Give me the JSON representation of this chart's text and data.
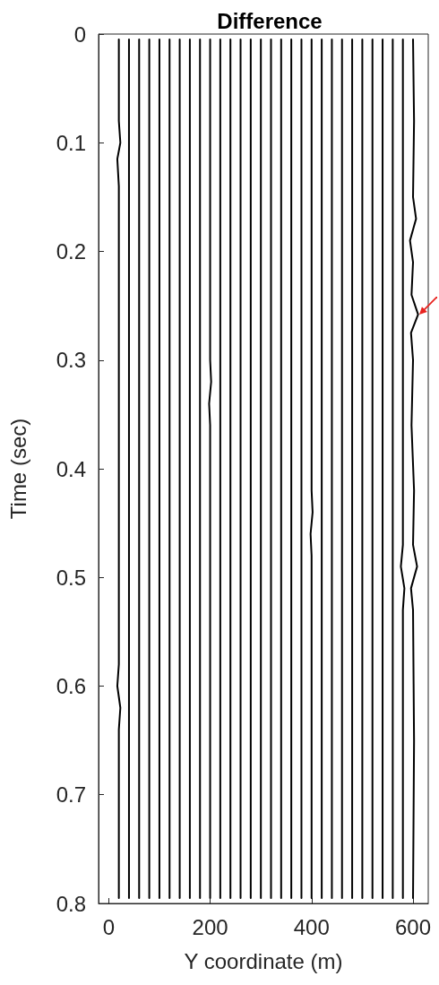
{
  "chart_data": {
    "type": "line",
    "title": "Difference",
    "xlabel": "Y coordinate (m)",
    "ylabel": "Time (sec)",
    "xlim": [
      -20,
      630
    ],
    "xticks": [
      0,
      200,
      400,
      600
    ],
    "ylim": [
      0.8,
      0
    ],
    "yticks": [
      0,
      0.1,
      0.2,
      0.3,
      0.4,
      0.5,
      0.6,
      0.7,
      0.8
    ],
    "grid": false,
    "marker": "none",
    "line_style": "solid",
    "series": [
      {
        "color": "#000000",
        "x": [
          20,
          20,
          23,
          17,
          20,
          20,
          17,
          23,
          20,
          20
        ],
        "values": [
          0.005,
          0.08,
          0.1,
          0.115,
          0.14,
          0.58,
          0.6,
          0.62,
          0.64,
          0.795
        ]
      },
      {
        "color": "#000000",
        "x": [
          40,
          40
        ],
        "values": [
          0.005,
          0.795
        ]
      },
      {
        "color": "#000000",
        "x": [
          60,
          60
        ],
        "values": [
          0.005,
          0.795
        ]
      },
      {
        "color": "#000000",
        "x": [
          80,
          80
        ],
        "values": [
          0.005,
          0.795
        ]
      },
      {
        "color": "#000000",
        "x": [
          100,
          100
        ],
        "values": [
          0.005,
          0.795
        ]
      },
      {
        "color": "#000000",
        "x": [
          120,
          120
        ],
        "values": [
          0.005,
          0.795
        ]
      },
      {
        "color": "#000000",
        "x": [
          140,
          140
        ],
        "values": [
          0.005,
          0.795
        ]
      },
      {
        "color": "#000000",
        "x": [
          160,
          160
        ],
        "values": [
          0.005,
          0.795
        ]
      },
      {
        "color": "#000000",
        "x": [
          180,
          180
        ],
        "values": [
          0.005,
          0.795
        ]
      },
      {
        "color": "#000000",
        "x": [
          200,
          200,
          202,
          198,
          200,
          200
        ],
        "values": [
          0.005,
          0.3,
          0.32,
          0.34,
          0.36,
          0.795
        ]
      },
      {
        "color": "#000000",
        "x": [
          220,
          220
        ],
        "values": [
          0.005,
          0.795
        ]
      },
      {
        "color": "#000000",
        "x": [
          240,
          240
        ],
        "values": [
          0.005,
          0.795
        ]
      },
      {
        "color": "#000000",
        "x": [
          260,
          260
        ],
        "values": [
          0.005,
          0.795
        ]
      },
      {
        "color": "#000000",
        "x": [
          280,
          280
        ],
        "values": [
          0.005,
          0.795
        ]
      },
      {
        "color": "#000000",
        "x": [
          300,
          300
        ],
        "values": [
          0.005,
          0.795
        ]
      },
      {
        "color": "#000000",
        "x": [
          320,
          320
        ],
        "values": [
          0.005,
          0.795
        ]
      },
      {
        "color": "#000000",
        "x": [
          340,
          340
        ],
        "values": [
          0.005,
          0.795
        ]
      },
      {
        "color": "#000000",
        "x": [
          360,
          360
        ],
        "values": [
          0.005,
          0.795
        ]
      },
      {
        "color": "#000000",
        "x": [
          380,
          380
        ],
        "values": [
          0.005,
          0.795
        ]
      },
      {
        "color": "#000000",
        "x": [
          400,
          400,
          402,
          398,
          400,
          400
        ],
        "values": [
          0.005,
          0.42,
          0.44,
          0.46,
          0.48,
          0.795
        ]
      },
      {
        "color": "#000000",
        "x": [
          420,
          420
        ],
        "values": [
          0.005,
          0.795
        ]
      },
      {
        "color": "#000000",
        "x": [
          440,
          440
        ],
        "values": [
          0.005,
          0.795
        ]
      },
      {
        "color": "#000000",
        "x": [
          460,
          460
        ],
        "values": [
          0.005,
          0.795
        ]
      },
      {
        "color": "#000000",
        "x": [
          480,
          480
        ],
        "values": [
          0.005,
          0.795
        ]
      },
      {
        "color": "#000000",
        "x": [
          500,
          500
        ],
        "values": [
          0.005,
          0.795
        ]
      },
      {
        "color": "#000000",
        "x": [
          520,
          520
        ],
        "values": [
          0.005,
          0.795
        ]
      },
      {
        "color": "#000000",
        "x": [
          540,
          540
        ],
        "values": [
          0.005,
          0.795
        ]
      },
      {
        "color": "#000000",
        "x": [
          560,
          560
        ],
        "values": [
          0.005,
          0.795
        ]
      },
      {
        "color": "#000000",
        "x": [
          580,
          580,
          576,
          583,
          580,
          580
        ],
        "values": [
          0.005,
          0.47,
          0.49,
          0.51,
          0.53,
          0.795
        ]
      },
      {
        "color": "#000000",
        "x": [
          600,
          602,
          600,
          606,
          594,
          600,
          597,
          610,
          596,
          600,
          597,
          602,
          600,
          608,
          596,
          600,
          602,
          600
        ],
        "values": [
          0.005,
          0.08,
          0.15,
          0.17,
          0.19,
          0.21,
          0.24,
          0.258,
          0.275,
          0.3,
          0.36,
          0.42,
          0.47,
          0.49,
          0.51,
          0.53,
          0.65,
          0.795
        ]
      }
    ]
  }
}
